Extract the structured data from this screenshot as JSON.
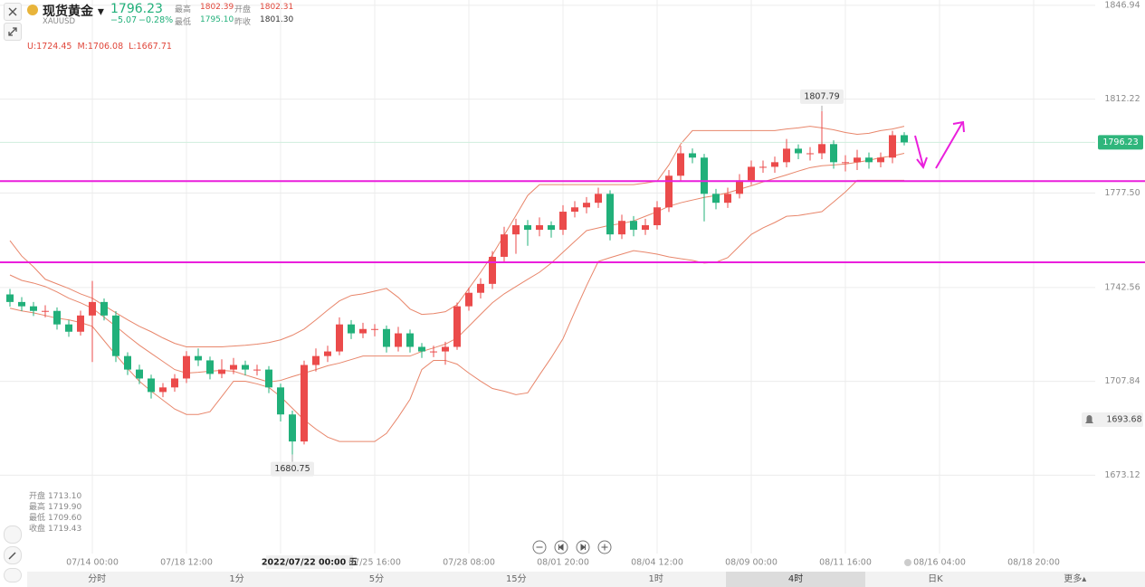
{
  "header": {
    "name": "现货黄金",
    "symbol": "XAUUSD",
    "price": "1796.23",
    "change": "−5.07",
    "change_pct": "−0.28%",
    "stats": [
      {
        "label": "最高",
        "value": "1802.39",
        "tone": "up"
      },
      {
        "label": "开盘",
        "value": "1802.31",
        "tone": "up"
      },
      {
        "label": "最低",
        "value": "1795.10",
        "tone": "down"
      },
      {
        "label": "昨收",
        "value": "1801.30",
        "tone": "flat"
      }
    ]
  },
  "indicator": [
    "U:1724.45",
    "M:1706.08",
    "L:1667.71"
  ],
  "ohlc_panel": [
    {
      "label": "开盘",
      "value": "1713.10"
    },
    {
      "label": "最高",
      "value": "1719.90"
    },
    {
      "label": "最低",
      "value": "1709.60"
    },
    {
      "label": "收盘",
      "value": "1719.43"
    }
  ],
  "tabs": [
    "分时",
    "1分",
    "5分",
    "15分",
    "1时",
    "4时",
    "日K",
    "更多▴"
  ],
  "selected_tab": "4时",
  "chart_data": {
    "type": "candlestick",
    "categories": [
      null,
      null,
      null,
      null,
      null,
      null,
      null,
      "07/14 00:00",
      null,
      null,
      null,
      null,
      null,
      null,
      null,
      "07/18 12:00",
      null,
      null,
      null,
      null,
      null,
      null,
      null,
      "2022/07/22 00:00 五",
      null,
      null,
      null,
      null,
      null,
      null,
      null,
      "07/25 16:00",
      null,
      null,
      null,
      null,
      null,
      null,
      null,
      "07/28 08:00",
      null,
      null,
      null,
      null,
      null,
      null,
      null,
      "08/01 20:00",
      null,
      null,
      null,
      null,
      null,
      null,
      null,
      "08/04 12:00",
      null,
      null,
      null,
      null,
      null,
      null,
      null,
      "08/09 00:00",
      null,
      null,
      null,
      null,
      null,
      null,
      null,
      "08/11 16:00",
      null,
      null,
      null,
      null,
      null,
      null,
      null,
      "08/16 04:00",
      null,
      null,
      null,
      null,
      null,
      null,
      null,
      "08/18 20:00"
    ],
    "open": [
      1740,
      1737.2,
      1735.6,
      1733.9,
      1733.9,
      1728.9,
      1726.2,
      1732.2,
      1737.2,
      1732.2,
      1717.2,
      1712.2,
      1708.9,
      1703.9,
      1705.6,
      1708.9,
      1717.2,
      1715.6,
      1710.6,
      1712.2,
      1713.9,
      1712.2,
      1712.2,
      1705.6,
      1695.6,
      1685.6,
      1713.9,
      1717.2,
      1718.9,
      1728.9,
      1725.6,
      1727.2,
      1727.2,
      1720.6,
      1725.6,
      1720.6,
      1718.9,
      1718.9,
      1720.6,
      1735.6,
      1740.6,
      1743.9,
      1753.9,
      1762.2,
      1765.6,
      1763.9,
      1765.6,
      1763.9,
      1770.6,
      1772.2,
      1773.9,
      1777.2,
      1762.2,
      1767.2,
      1763.9,
      1765.6,
      1772.2,
      1783.9,
      1792.2,
      1790.6,
      1777.2,
      1773.9,
      1777.2,
      1782.2,
      1787.2,
      1787.2,
      1788.9,
      1793.9,
      1792.2,
      1792.2,
      1795.6,
      1788.9,
      1788.9,
      1790.6,
      1788.9,
      1790.6,
      1798.9,
      null,
      null,
      null,
      null,
      null,
      null,
      null,
      null,
      null,
      null,
      null
    ],
    "high": [
      1742.0,
      1739.0,
      1737.2,
      1736.0,
      1735.2,
      1730.5,
      1734.0,
      1745.0,
      1738.5,
      1733.8,
      1718.6,
      1714.0,
      1710.3,
      1707.2,
      1710.5,
      1719.0,
      1720.0,
      1717.0,
      1716.0,
      1716.5,
      1715.5,
      1714.0,
      1713.5,
      1707.0,
      1697.0,
      1715.5,
      1720.0,
      1721.0,
      1731.5,
      1730.5,
      1729.5,
      1729.0,
      1728.5,
      1728.0,
      1727.0,
      1722.0,
      1721.0,
      1722.5,
      1737.0,
      1742.5,
      1746.0,
      1756.0,
      1765.0,
      1768.0,
      1767.5,
      1768.5,
      1767.0,
      1773.0,
      1774.5,
      1776.0,
      1779.5,
      1778.5,
      1769.5,
      1769.0,
      1768.0,
      1774.5,
      1786.0,
      1795.0,
      1794.0,
      1792.0,
      1779.0,
      1779.5,
      1784.5,
      1789.5,
      1789.5,
      1791.0,
      1797.5,
      1795.5,
      1794.5,
      1807.79,
      1797.0,
      1791.5,
      1793.5,
      1792.5,
      1792.5,
      1800.5,
      1800.0,
      null,
      null,
      null,
      null,
      null,
      null,
      null,
      null,
      null,
      null,
      null
    ],
    "low": [
      1735.5,
      1733.8,
      1732.0,
      1731.5,
      1727.0,
      1724.3,
      1724.8,
      1715.0,
      1730.4,
      1715.0,
      1710.2,
      1706.8,
      1701.5,
      1702.0,
      1704.0,
      1707.2,
      1713.5,
      1708.6,
      1709.0,
      1710.5,
      1710.0,
      1710.0,
      1703.5,
      1693.0,
      1680.75,
      1684.5,
      1711.5,
      1715.0,
      1717.5,
      1723.5,
      1723.8,
      1724.5,
      1718.5,
      1718.9,
      1718.5,
      1716.5,
      1716.8,
      1714.0,
      1719.5,
      1734.0,
      1738.5,
      1742.0,
      1752.0,
      1755.0,
      1758.0,
      1761.5,
      1761.0,
      1762.0,
      1768.5,
      1770.0,
      1772.0,
      1760.0,
      1760.5,
      1761.5,
      1762.0,
      1764.0,
      1770.5,
      1782.0,
      1788.5,
      1767.0,
      1771.5,
      1772.0,
      1775.5,
      1780.5,
      1785.0,
      1785.0,
      1787.0,
      1790.0,
      1789.5,
      1790.0,
      1786.5,
      1785.5,
      1786.0,
      1786.5,
      1787.0,
      1788.5,
      1795.1,
      null,
      null,
      null,
      null,
      null,
      null,
      null,
      null,
      null,
      null,
      null
    ],
    "close": [
      1737.2,
      1735.6,
      1733.9,
      1733.9,
      1728.9,
      1726.2,
      1732.2,
      1737.2,
      1732.2,
      1717.2,
      1712.2,
      1708.9,
      1703.9,
      1705.6,
      1708.9,
      1717.2,
      1715.6,
      1710.6,
      1712.2,
      1713.9,
      1712.2,
      1712.2,
      1705.6,
      1695.6,
      1685.6,
      1713.9,
      1717.2,
      1718.9,
      1728.9,
      1725.6,
      1727.2,
      1727.2,
      1720.6,
      1725.6,
      1720.6,
      1718.9,
      1718.9,
      1720.6,
      1735.6,
      1740.6,
      1743.9,
      1753.9,
      1762.2,
      1765.6,
      1763.9,
      1765.6,
      1763.9,
      1770.6,
      1772.2,
      1773.9,
      1777.2,
      1762.2,
      1767.2,
      1763.9,
      1765.6,
      1772.2,
      1783.9,
      1792.2,
      1790.6,
      1777.2,
      1773.9,
      1777.2,
      1782.2,
      1787.2,
      1787.2,
      1788.9,
      1793.9,
      1792.2,
      1792.2,
      1795.6,
      1788.9,
      1788.9,
      1790.6,
      1788.9,
      1790.6,
      1798.9,
      1796.23,
      null,
      null,
      null,
      null,
      null,
      null,
      null,
      null,
      null,
      null,
      null
    ],
    "upper": [
      1759.9,
      1754.2,
      1750.2,
      1745.6,
      1743.9,
      1742.2,
      1740.2,
      1738.6,
      1735.9,
      1733.2,
      1730.6,
      1728.2,
      1726.2,
      1723.9,
      1721.9,
      1720.6,
      1720.6,
      1720.6,
      1720.6,
      1720.9,
      1721.2,
      1721.6,
      1722.2,
      1723.2,
      1724.9,
      1727.2,
      1730.6,
      1734.2,
      1737.6,
      1739.6,
      1740.2,
      1741.2,
      1742.2,
      1738.9,
      1734.6,
      1732.6,
      1732.9,
      1733.6,
      1736.2,
      1742.2,
      1748.2,
      1754.6,
      1761.9,
      1769.2,
      1776.6,
      1780.6,
      1780.6,
      1780.6,
      1780.6,
      1780.6,
      1780.6,
      1780.6,
      1780.6,
      1780.6,
      1781.2,
      1781.9,
      1787.9,
      1795.6,
      1800.6,
      1800.6,
      1800.6,
      1800.6,
      1800.6,
      1800.6,
      1800.6,
      1800.6,
      1801.2,
      1801.6,
      1802.2,
      1801.6,
      1800.9,
      1799.9,
      1799.2,
      1799.6,
      1800.6,
      1801.2,
      1802.2,
      null,
      null,
      null,
      null,
      null,
      null,
      null,
      null,
      null,
      null,
      null
    ],
    "middle": [
      1747.2,
      1745.2,
      1744.2,
      1742.9,
      1740.9,
      1738.6,
      1736.9,
      1734.9,
      1731.6,
      1728.2,
      1724.6,
      1721.2,
      1718.2,
      1715.2,
      1712.2,
      1710.9,
      1711.2,
      1711.6,
      1711.9,
      1711.6,
      1710.2,
      1708.9,
      1707.6,
      1708.2,
      1709.6,
      1710.9,
      1712.2,
      1713.6,
      1714.6,
      1715.9,
      1717.2,
      1717.2,
      1717.2,
      1717.2,
      1717.2,
      1718.9,
      1720.2,
      1721.6,
      1723.9,
      1728.2,
      1732.6,
      1736.9,
      1740.2,
      1742.9,
      1745.6,
      1748.2,
      1751.6,
      1755.6,
      1759.6,
      1763.6,
      1764.6,
      1765.6,
      1766.2,
      1767.2,
      1768.9,
      1770.6,
      1772.6,
      1773.9,
      1774.9,
      1775.9,
      1776.6,
      1777.6,
      1778.9,
      1780.2,
      1781.6,
      1782.9,
      1784.2,
      1785.6,
      1786.9,
      1787.6,
      1787.9,
      1788.2,
      1788.9,
      1789.6,
      1790.6,
      1791.2,
      1792.2,
      null,
      null,
      null,
      null,
      null,
      null,
      null,
      null,
      null,
      null,
      null
    ],
    "lower": [
      1734.9,
      1733.9,
      1733.2,
      1732.2,
      1731.2,
      1730.6,
      1729.6,
      1728.2,
      1722.9,
      1717.6,
      1712.6,
      1707.9,
      1704.2,
      1700.9,
      1697.6,
      1695.6,
      1695.6,
      1696.6,
      1702.2,
      1707.9,
      1707.9,
      1706.9,
      1705.6,
      1702.2,
      1697.9,
      1693.6,
      1690.2,
      1687.2,
      1685.6,
      1685.6,
      1685.6,
      1685.6,
      1688.6,
      1694.6,
      1701.2,
      1712.2,
      1715.6,
      1715.6,
      1714.2,
      1710.9,
      1707.9,
      1705.2,
      1704.2,
      1702.9,
      1703.6,
      1710.2,
      1716.6,
      1723.6,
      1733.6,
      1743.2,
      1752.2,
      1753.6,
      1754.9,
      1756.2,
      1755.6,
      1754.9,
      1753.9,
      1753.2,
      1752.6,
      1751.6,
      1751.9,
      1753.6,
      1757.9,
      1762.2,
      1764.6,
      1766.6,
      1768.9,
      1769.2,
      1769.9,
      1770.6,
      1774.2,
      1777.9,
      1782.2,
      1782.2,
      1782.2,
      1782.2,
      1782.2,
      null,
      null,
      null,
      null,
      null,
      null,
      null,
      null,
      null,
      null,
      null
    ],
    "ylim": [
      1638.8,
      1848.9
    ],
    "yticks": [
      1846.94,
      1812.22,
      {
        "value": 1777.5,
        "label": "1777.50"
      },
      1742.56,
      1707.84,
      1673.12
    ],
    "last_price": 1796.23,
    "alert_price": 1693.68,
    "hlines": [
      1781.9,
      1751.9
    ],
    "up_color": "#eb4b4b",
    "down_color": "#21b07a",
    "band_color": "#e8866b",
    "hline_color": "#ea1fdc",
    "last_color": "#2fb67c",
    "grid": true
  }
}
